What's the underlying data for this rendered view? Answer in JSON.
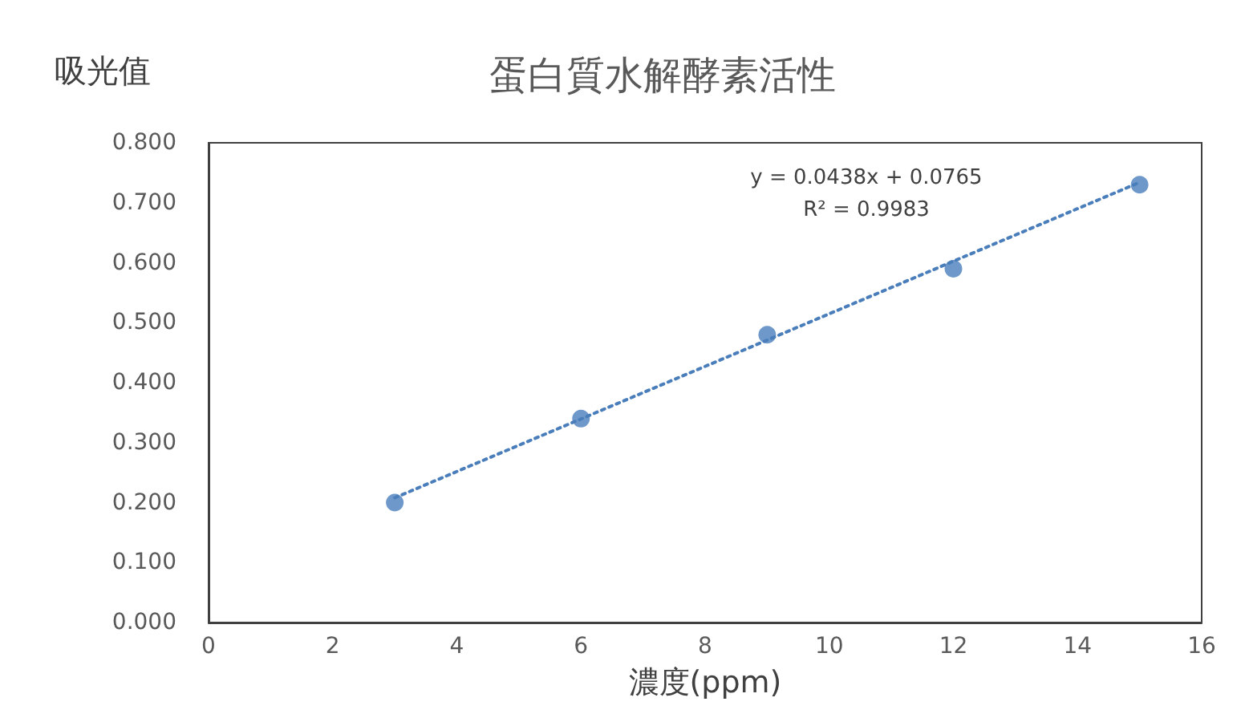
{
  "chart_data": {
    "type": "scatter",
    "title": "蛋白質水解酵素活性",
    "xlabel": "濃度(ppm)",
    "ylabel": "吸光值",
    "xlim": [
      0,
      16
    ],
    "xticks": [
      0,
      2,
      4,
      6,
      8,
      10,
      12,
      14,
      16
    ],
    "ylim": [
      0,
      0.8
    ],
    "yticks": [
      {
        "value": 0,
        "label": "0.000"
      },
      {
        "value": 0.1,
        "label": "0.100"
      },
      {
        "value": 0.2,
        "label": "0.200"
      },
      {
        "value": 0.3,
        "label": "0.300"
      },
      {
        "value": 0.4,
        "label": "0.400"
      },
      {
        "value": 0.5,
        "label": "0.500"
      },
      {
        "value": 0.6,
        "label": "0.600"
      },
      {
        "value": 0.7,
        "label": "0.700"
      },
      {
        "value": 0.8,
        "label": "0.800"
      }
    ],
    "grid": false,
    "marker": "circle",
    "series": [
      {
        "color": "#4a7ebb",
        "x": [
          3,
          6,
          9,
          12,
          15
        ],
        "values": [
          0.2,
          0.34,
          0.48,
          0.59,
          0.73
        ]
      },
      {
        "type": "line",
        "color": "#4a7ebb",
        "line_style": "dotted",
        "marker": "none",
        "x": [
          3,
          15
        ],
        "values": [
          0.208,
          0.734
        ]
      }
    ],
    "annotations": [
      "y = 0.0438x + 0.0765\nR² = 0.9983"
    ]
  }
}
